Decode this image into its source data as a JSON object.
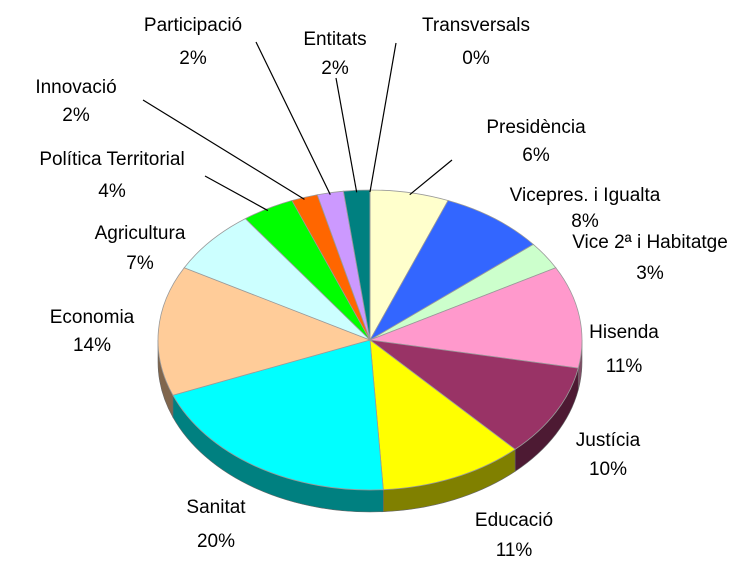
{
  "chart_data": {
    "type": "pie",
    "categories": [
      "Presidència",
      "Vicepres. i Igualta",
      "Vice 2ª i Habitatge",
      "Hisenda",
      "Justícia",
      "Educació",
      "Sanitat",
      "Economia",
      "Agricultura",
      "Política Territorial",
      "Innovació",
      "Participació",
      "Entitats",
      "Transversals"
    ],
    "values": [
      6,
      8,
      3,
      11,
      10,
      11,
      20,
      14,
      7,
      4,
      2,
      2,
      2,
      0
    ],
    "value_labels": [
      "6%",
      "8%",
      "3%",
      "11%",
      "10%",
      "11%",
      "20%",
      "14%",
      "7%",
      "4%",
      "2%",
      "2%",
      "2%",
      "0%"
    ],
    "colors": [
      "#ffffcc",
      "#3366ff",
      "#ccffcc",
      "#ff99cc",
      "#993366",
      "#ffff00",
      "#00ffff",
      "#ffcc99",
      "#ccffff",
      "#00ff00",
      "#ff6600",
      "#cc99ff",
      "#008080",
      "#ff0000"
    ]
  }
}
